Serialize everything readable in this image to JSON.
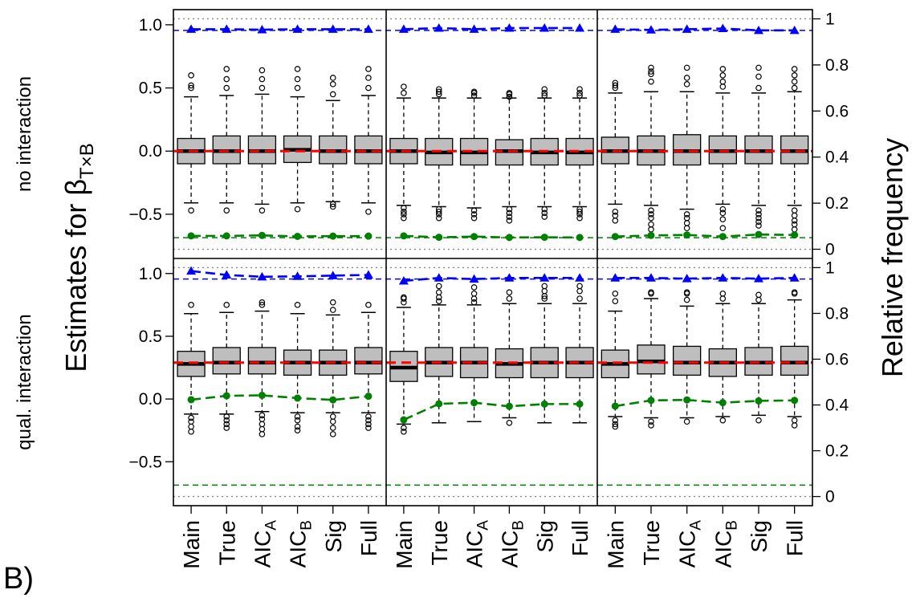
{
  "figure": {
    "panel_label": "B)",
    "ylabel_left": "Estimates for β",
    "ylabel_left_sub": "T×B",
    "ylabel_right": "Relative frequency"
  },
  "colors": {
    "box_fill": "#bebebe",
    "true_value": "#ff0000",
    "power_line": "#0000ff",
    "type1_line": "#008000",
    "dotted": "#888888"
  },
  "chart_data": {
    "type": "boxplot",
    "methods": [
      {
        "base": "Main",
        "sub": ""
      },
      {
        "base": "True",
        "sub": ""
      },
      {
        "base": "AIC",
        "sub": "A"
      },
      {
        "base": "AIC",
        "sub": "B"
      },
      {
        "base": "Sig",
        "sub": ""
      },
      {
        "base": "Full",
        "sub": ""
      }
    ],
    "left_axis": {
      "ylim": [
        -0.85,
        1.12
      ],
      "ticks": [
        -0.5,
        0.0,
        0.5,
        1.0
      ],
      "tick_labels": [
        "−0.5",
        "0.0",
        "0.5",
        "1.0"
      ]
    },
    "right_axis": {
      "ylim": [
        -0.04,
        1.04
      ],
      "ticks": [
        0,
        0.2,
        0.4,
        0.6,
        0.8,
        1
      ],
      "tick_labels": [
        "0",
        "0.2",
        "0.4",
        "0.6",
        "0.8",
        "1"
      ],
      "reference_lines": [
        0.05,
        0.95
      ]
    },
    "rows": [
      {
        "label": "no interaction",
        "true_value": 0.0,
        "panels": [
          {
            "boxes": [
              {
                "whisker_low": -0.41,
                "q1": -0.1,
                "median": 0.0,
                "q3": 0.1,
                "whisker_high": 0.43,
                "outliers": [
                  -0.47,
                  0.5,
                  0.52,
                  0.6
                ]
              },
              {
                "whisker_low": -0.41,
                "q1": -0.1,
                "median": 0.0,
                "q3": 0.12,
                "whisker_high": 0.44,
                "outliers": [
                  -0.47,
                  0.5,
                  0.57,
                  0.65
                ]
              },
              {
                "whisker_low": -0.42,
                "q1": -0.1,
                "median": 0.0,
                "q3": 0.12,
                "whisker_high": 0.45,
                "outliers": [
                  -0.47,
                  0.5,
                  0.57,
                  0.64
                ]
              },
              {
                "whisker_low": -0.41,
                "q1": -0.09,
                "median": 0.01,
                "q3": 0.12,
                "whisker_high": 0.43,
                "outliers": [
                  -0.46,
                  0.5,
                  0.57,
                  0.65
                ]
              },
              {
                "whisker_low": -0.4,
                "q1": -0.1,
                "median": 0.0,
                "q3": 0.12,
                "whisker_high": 0.4,
                "outliers": [
                  -0.42,
                  -0.44,
                  0.45,
                  0.53,
                  0.58
                ]
              },
              {
                "whisker_low": -0.41,
                "q1": -0.1,
                "median": 0.0,
                "q3": 0.12,
                "whisker_high": 0.44,
                "outliers": [
                  -0.48,
                  0.5,
                  0.58,
                  0.65
                ]
              }
            ],
            "power": [
              0.955,
              0.955,
              0.953,
              0.955,
              0.955,
              0.955
            ],
            "type1": [
              0.058,
              0.058,
              0.06,
              0.056,
              0.057,
              0.057
            ]
          },
          {
            "boxes": [
              {
                "whisker_low": -0.43,
                "q1": -0.1,
                "median": 0.0,
                "q3": 0.1,
                "whisker_high": 0.42,
                "outliers": [
                  -0.45,
                  -0.48,
                  -0.5,
                  -0.53,
                  0.46,
                  0.51
                ]
              },
              {
                "whisker_low": -0.44,
                "q1": -0.11,
                "median": -0.01,
                "q3": 0.1,
                "whisker_high": 0.42,
                "outliers": [
                  -0.46,
                  -0.48,
                  -0.5,
                  -0.53,
                  0.45,
                  0.47,
                  0.49
                ]
              },
              {
                "whisker_low": -0.45,
                "q1": -0.11,
                "median": -0.01,
                "q3": 0.1,
                "whisker_high": 0.42,
                "outliers": [
                  -0.47,
                  -0.5,
                  -0.53,
                  0.44,
                  0.46,
                  0.47
                ]
              },
              {
                "whisker_low": -0.44,
                "q1": -0.11,
                "median": 0.0,
                "q3": 0.09,
                "whisker_high": 0.42,
                "outliers": [
                  -0.46,
                  -0.49,
                  -0.52,
                  -0.55,
                  0.43,
                  0.45,
                  0.46
                ]
              },
              {
                "whisker_low": -0.44,
                "q1": -0.11,
                "median": -0.01,
                "q3": 0.1,
                "whisker_high": 0.42,
                "outliers": [
                  -0.46,
                  -0.49,
                  -0.52,
                  0.44,
                  0.46,
                  0.49
                ]
              },
              {
                "whisker_low": -0.44,
                "q1": -0.11,
                "median": -0.01,
                "q3": 0.1,
                "whisker_high": 0.42,
                "outliers": [
                  -0.46,
                  -0.48,
                  -0.5,
                  -0.53,
                  0.44,
                  0.46,
                  0.49
                ]
              }
            ],
            "power": [
              0.955,
              0.96,
              0.955,
              0.96,
              0.96,
              0.96
            ],
            "type1": [
              0.058,
              0.052,
              0.055,
              0.051,
              0.052,
              0.051
            ]
          },
          {
            "boxes": [
              {
                "whisker_low": -0.42,
                "q1": -0.1,
                "median": 0.0,
                "q3": 0.11,
                "whisker_high": 0.46,
                "outliers": [
                  -0.48,
                  -0.51,
                  -0.55,
                  0.5,
                  0.52,
                  0.54
                ]
              },
              {
                "whisker_low": -0.43,
                "q1": -0.11,
                "median": 0.0,
                "q3": 0.12,
                "whisker_high": 0.47,
                "outliers": [
                  -0.47,
                  -0.5,
                  -0.53,
                  -0.58,
                  -0.62,
                  0.55,
                  0.61,
                  0.63,
                  0.66
                ]
              },
              {
                "whisker_low": -0.46,
                "q1": -0.11,
                "median": 0.0,
                "q3": 0.13,
                "whisker_high": 0.47,
                "outliers": [
                  -0.5,
                  -0.53,
                  -0.57,
                  -0.61,
                  0.53,
                  0.58,
                  0.66
                ]
              },
              {
                "whisker_low": -0.42,
                "q1": -0.1,
                "median": 0.0,
                "q3": 0.12,
                "whisker_high": 0.46,
                "outliers": [
                  -0.46,
                  -0.49,
                  -0.54,
                  -0.61,
                  0.51,
                  0.55,
                  0.6,
                  0.65
                ]
              },
              {
                "whisker_low": -0.43,
                "q1": -0.1,
                "median": 0.0,
                "q3": 0.12,
                "whisker_high": 0.46,
                "outliers": [
                  -0.47,
                  -0.5,
                  -0.53,
                  -0.56,
                  -0.59,
                  0.5,
                  0.59,
                  0.66
                ]
              },
              {
                "whisker_low": -0.43,
                "q1": -0.1,
                "median": 0.0,
                "q3": 0.12,
                "whisker_high": 0.47,
                "outliers": [
                  -0.47,
                  -0.51,
                  -0.55,
                  -0.58,
                  -0.62,
                  0.5,
                  0.55,
                  0.6,
                  0.65
                ]
              }
            ],
            "power": [
              0.955,
              0.952,
              0.955,
              0.958,
              0.95,
              0.95
            ],
            "type1": [
              0.055,
              0.06,
              0.062,
              0.055,
              0.064,
              0.062
            ]
          }
        ]
      },
      {
        "label": "qual. interaction",
        "true_value": 0.29,
        "panels": [
          {
            "boxes": [
              {
                "whisker_low": -0.12,
                "q1": 0.18,
                "median": 0.28,
                "q3": 0.38,
                "whisker_high": 0.68,
                "outliers": [
                  -0.15,
                  -0.18,
                  -0.22,
                  -0.26,
                  0.75
                ]
              },
              {
                "whisker_low": -0.12,
                "q1": 0.2,
                "median": 0.29,
                "q3": 0.41,
                "whisker_high": 0.69,
                "outliers": [
                  -0.14,
                  -0.17,
                  -0.2,
                  -0.23,
                  0.75
                ]
              },
              {
                "whisker_low": -0.1,
                "q1": 0.2,
                "median": 0.29,
                "q3": 0.41,
                "whisker_high": 0.7,
                "outliers": [
                  -0.13,
                  -0.16,
                  -0.2,
                  -0.24,
                  -0.28,
                  0.75,
                  0.77
                ]
              },
              {
                "whisker_low": -0.11,
                "q1": 0.19,
                "median": 0.29,
                "q3": 0.39,
                "whisker_high": 0.68,
                "outliers": [
                  -0.14,
                  -0.17,
                  -0.22,
                  -0.25,
                  0.75
                ]
              },
              {
                "whisker_low": -0.11,
                "q1": 0.19,
                "median": 0.29,
                "q3": 0.39,
                "whisker_high": 0.67,
                "outliers": [
                  -0.14,
                  -0.18,
                  -0.23,
                  -0.28,
                  0.71,
                  0.77
                ]
              },
              {
                "whisker_low": -0.11,
                "q1": 0.2,
                "median": 0.29,
                "q3": 0.41,
                "whisker_high": 0.69,
                "outliers": [
                  -0.14,
                  -0.17,
                  -0.2,
                  -0.23,
                  0.75
                ]
              }
            ],
            "power": [
              0.985,
              0.968,
              0.96,
              0.962,
              0.965,
              0.968
            ],
            "type1": [
              0.423,
              0.44,
              0.442,
              0.43,
              0.422,
              0.438
            ]
          },
          {
            "boxes": [
              {
                "whisker_low": -0.2,
                "q1": 0.14,
                "median": 0.25,
                "q3": 0.38,
                "whisker_high": 0.73,
                "outliers": [
                  -0.23,
                  -0.26,
                  0.77,
                  0.8,
                  0.81
                ]
              },
              {
                "whisker_low": -0.19,
                "q1": 0.18,
                "median": 0.29,
                "q3": 0.41,
                "whisker_high": 0.75,
                "outliers": [
                  0.78,
                  0.81,
                  0.85,
                  0.9
                ]
              },
              {
                "whisker_low": -0.18,
                "q1": 0.17,
                "median": 0.29,
                "q3": 0.41,
                "whisker_high": 0.75,
                "outliers": [
                  0.77,
                  0.8,
                  0.84,
                  0.89
                ]
              },
              {
                "whisker_low": -0.15,
                "q1": 0.17,
                "median": 0.28,
                "q3": 0.4,
                "whisker_high": 0.76,
                "outliers": [
                  -0.19,
                  0.8,
                  0.85
                ]
              },
              {
                "whisker_low": -0.19,
                "q1": 0.17,
                "median": 0.29,
                "q3": 0.41,
                "whisker_high": 0.76,
                "outliers": [
                  0.8,
                  0.82,
                  0.86,
                  0.9
                ]
              },
              {
                "whisker_low": -0.19,
                "q1": 0.17,
                "median": 0.29,
                "q3": 0.41,
                "whisker_high": 0.76,
                "outliers": [
                  0.8,
                  0.86,
                  0.9
                ]
              }
            ],
            "power": [
              0.942,
              0.955,
              0.95,
              0.955,
              0.955,
              0.955
            ],
            "type1": [
              0.335,
              0.405,
              0.41,
              0.394,
              0.404,
              0.404
            ]
          },
          {
            "boxes": [
              {
                "whisker_low": -0.14,
                "q1": 0.17,
                "median": 0.28,
                "q3": 0.39,
                "whisker_high": 0.7,
                "outliers": [
                  -0.17,
                  -0.2,
                  -0.22,
                  0.78,
                  0.84
                ]
              },
              {
                "whisker_low": -0.15,
                "q1": 0.2,
                "median": 0.3,
                "q3": 0.43,
                "whisker_high": 0.8,
                "outliers": [
                  -0.18,
                  -0.21,
                  0.84,
                  0.85
                ]
              },
              {
                "whisker_low": -0.15,
                "q1": 0.19,
                "median": 0.29,
                "q3": 0.42,
                "whisker_high": 0.74,
                "outliers": [
                  -0.18,
                  0.79,
                  0.84,
                  0.85
                ]
              },
              {
                "whisker_low": -0.14,
                "q1": 0.18,
                "median": 0.29,
                "q3": 0.4,
                "whisker_high": 0.76,
                "outliers": [
                  -0.17,
                  0.8,
                  0.84
                ]
              },
              {
                "whisker_low": -0.13,
                "q1": 0.19,
                "median": 0.29,
                "q3": 0.41,
                "whisker_high": 0.76,
                "outliers": [
                  -0.17,
                  0.79,
                  0.83
                ]
              },
              {
                "whisker_low": -0.14,
                "q1": 0.19,
                "median": 0.29,
                "q3": 0.42,
                "whisker_high": 0.79,
                "outliers": [
                  -0.17,
                  -0.21,
                  0.84,
                  0.85
                ]
              }
            ],
            "power": [
              0.955,
              0.955,
              0.952,
              0.955,
              0.952,
              0.955
            ],
            "type1": [
              0.395,
              0.42,
              0.422,
              0.41,
              0.418,
              0.42
            ]
          }
        ]
      }
    ]
  }
}
